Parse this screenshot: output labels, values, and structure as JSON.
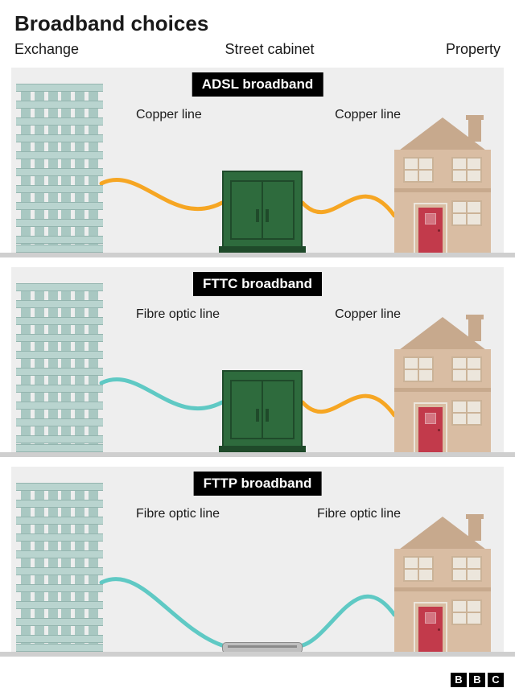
{
  "title": "Broadband choices",
  "columns": [
    "Exchange",
    "Street cabinet",
    "Property"
  ],
  "logo_letters": [
    "B",
    "B",
    "C"
  ],
  "colors": {
    "panel_bg": "#eeeeee",
    "ground": "#cfcfcf",
    "badge_bg": "#000000",
    "badge_fg": "#ffffff",
    "copper": "#f6a623",
    "fibre": "#5fc9c4",
    "cable_width": 5,
    "exchange_slab": "#b9d4cf",
    "exchange_col": "#a9c8c2",
    "exchange_line": "#94b5af",
    "cabinet_body": "#2e6b3d",
    "cabinet_line": "#1f4a2a",
    "manhole_top": "#bfbfbf",
    "manhole_line": "#8a8a8a",
    "manhole_slot": "#8a8a8a",
    "wall": "#d9bda3",
    "roof": "#c7a98d",
    "chimney": "#c7a98d",
    "band": "#c7a98d",
    "win": "#ece6dc",
    "win_frame": "#cbb398",
    "door": "#c23a4b",
    "door_frame": "#ece6dc"
  },
  "panels": [
    {
      "badge": "ADSL broadband",
      "left_line_label": "Copper line",
      "right_line_label": "Copper line",
      "left_line_type": "copper",
      "right_line_type": "copper",
      "middle_node": "cabinet"
    },
    {
      "badge": "FTTC broadband",
      "left_line_label": "Fibre optic line",
      "right_line_label": "Copper line",
      "left_line_type": "fibre",
      "right_line_type": "copper",
      "middle_node": "cabinet"
    },
    {
      "badge": "FTTP broadband",
      "left_line_label": "Fibre optic line",
      "right_line_label": "Fibre optic line",
      "left_line_type": "fibre",
      "right_line_type": "fibre",
      "middle_node": "manhole"
    }
  ]
}
